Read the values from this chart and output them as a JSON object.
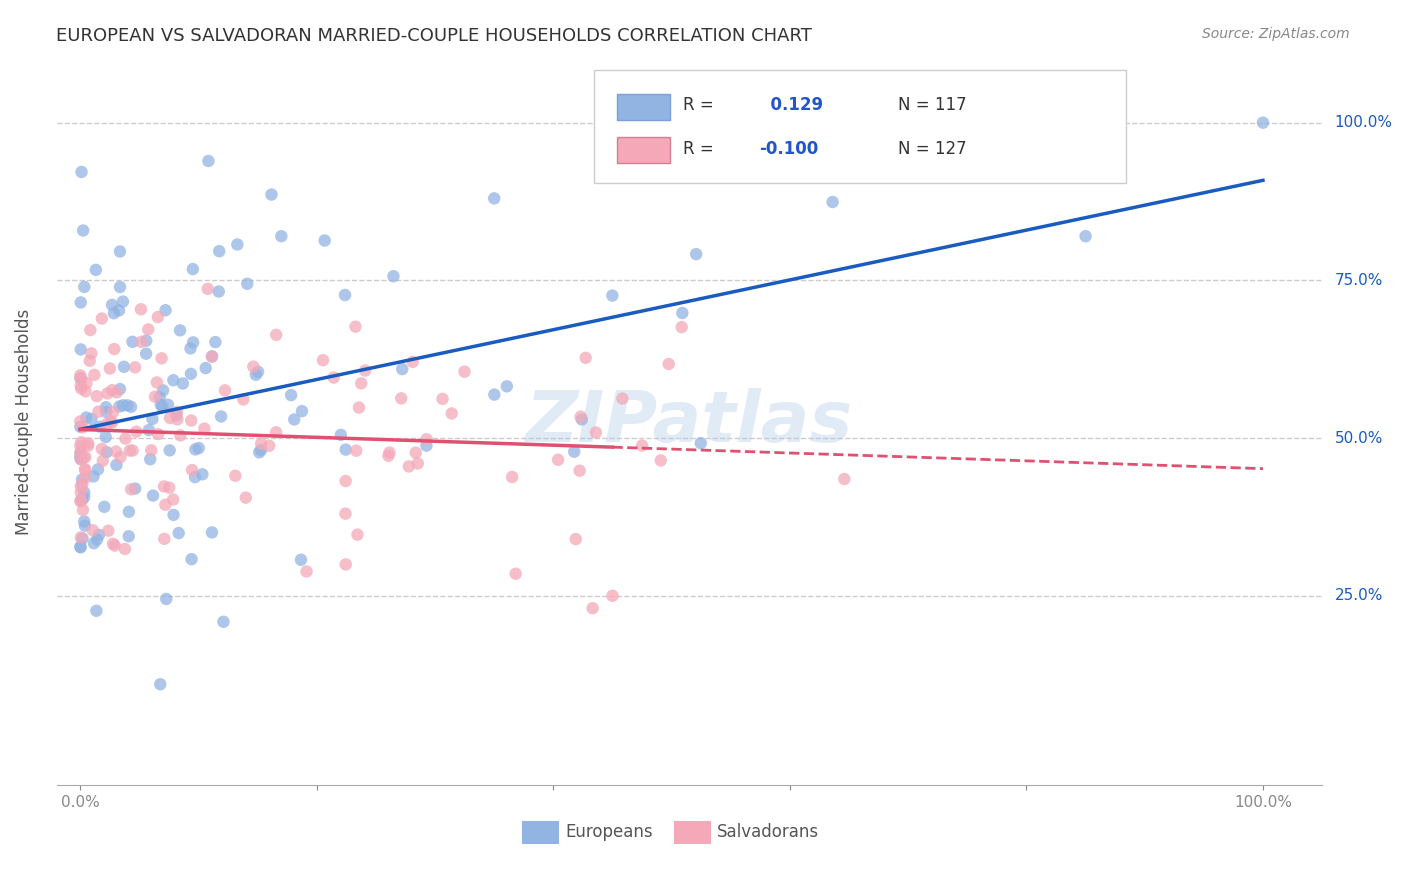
{
  "title": "EUROPEAN VS SALVADORAN MARRIED-COUPLE HOUSEHOLDS CORRELATION CHART",
  "source": "Source: ZipAtlas.com",
  "ylabel": "Married-couple Households",
  "watermark": "ZIPatlas",
  "blue_R": 0.129,
  "blue_N": 117,
  "pink_R": -0.1,
  "pink_N": 127,
  "blue_color": "#92b4e3",
  "pink_color": "#f4a8b8",
  "blue_line_color": "#1a5bbf",
  "pink_line_color": "#e05070",
  "background_color": "#ffffff",
  "grid_color": "#cccccc",
  "title_color": "#333333",
  "legend_R_color": "#2255cc"
}
